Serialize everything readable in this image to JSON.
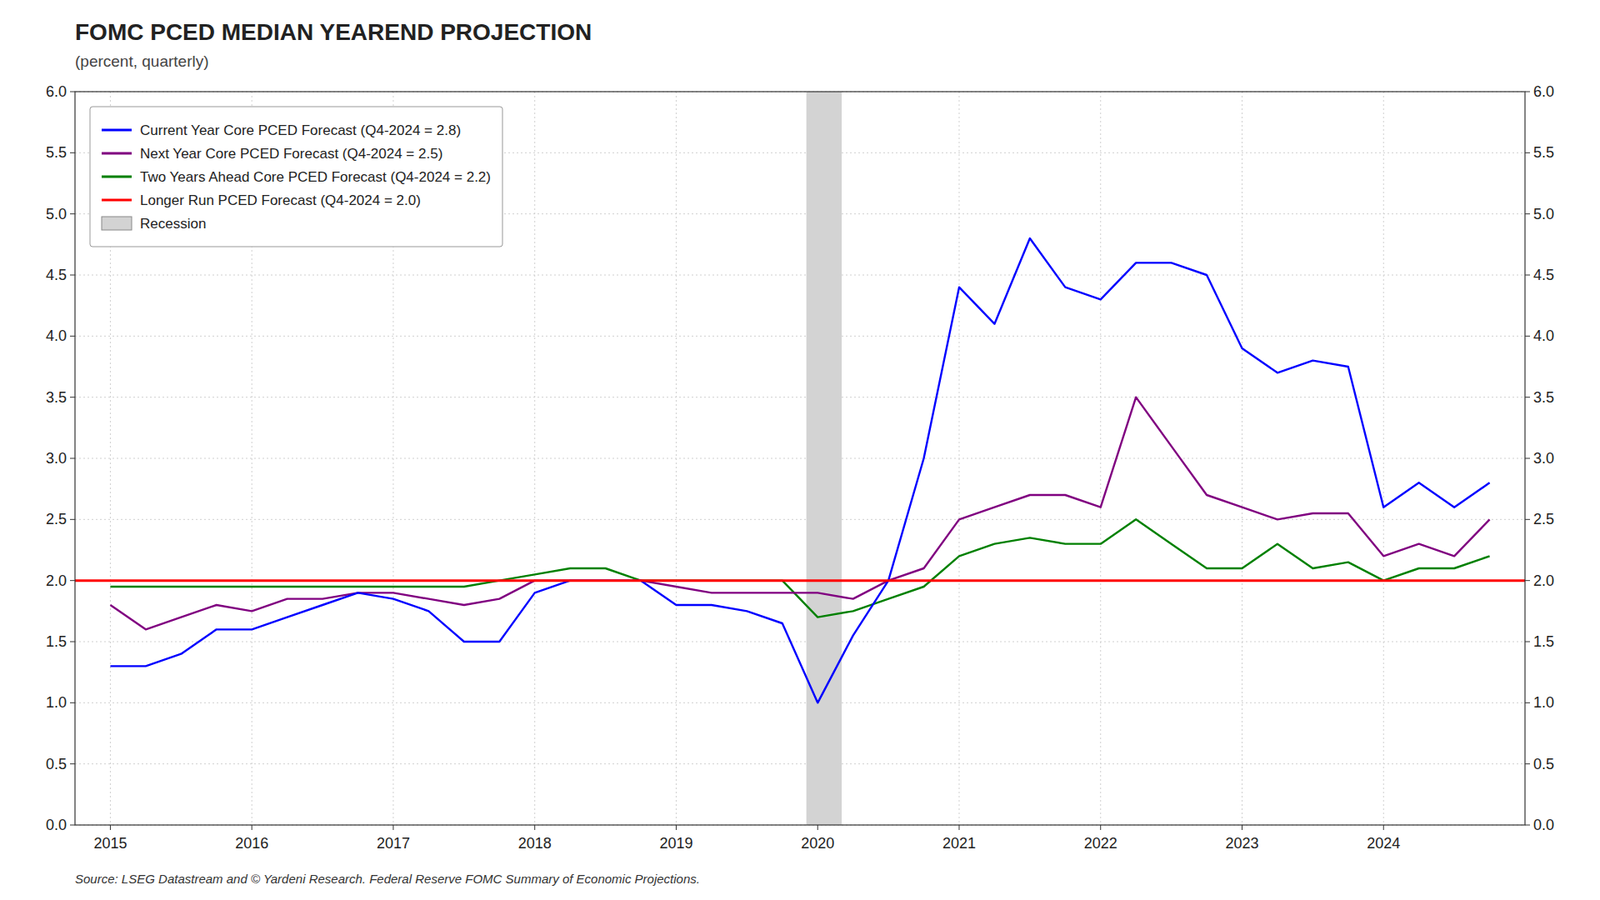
{
  "chart_data": {
    "type": "line",
    "title": "FOMC PCED MEDIAN YEAREND PROJECTION",
    "subtitle": "(percent, quarterly)",
    "annotations": [
      "Source: LSEG Datastream and © Yardeni Research. Federal Reserve FOMC Summary of Economic Projections."
    ],
    "series": [
      {
        "name": "Current Year Core PCED Forecast (Q4-2024 = 2.8)",
        "color": "blue",
        "x": [
          2015.0,
          2015.25,
          2015.5,
          2015.75,
          2016.0,
          2016.25,
          2016.5,
          2016.75,
          2017.0,
          2017.25,
          2017.5,
          2017.75,
          2018.0,
          2018.25,
          2018.5,
          2018.75,
          2019.0,
          2019.25,
          2019.5,
          2019.75,
          2020.0,
          2020.25,
          2020.5,
          2020.75,
          2021.0,
          2021.25,
          2021.5,
          2021.75,
          2022.0,
          2022.25,
          2022.5,
          2022.75,
          2023.0,
          2023.25,
          2023.5,
          2023.75,
          2024.0,
          2024.25,
          2024.5,
          2024.75
        ],
        "values": [
          1.3,
          1.3,
          1.4,
          1.6,
          1.6,
          1.7,
          1.8,
          1.9,
          1.85,
          1.75,
          1.5,
          1.5,
          1.9,
          2.0,
          2.0,
          2.0,
          1.8,
          1.8,
          1.75,
          1.65,
          1.0,
          1.55,
          2.0,
          3.0,
          4.4,
          4.1,
          4.8,
          4.4,
          4.3,
          4.6,
          4.6,
          4.5,
          3.9,
          3.7,
          3.8,
          3.75,
          2.6,
          2.8,
          2.6,
          2.8
        ]
      },
      {
        "name": "Next Year Core PCED Forecast (Q4-2024 = 2.5)",
        "color": "purple",
        "x": [
          2015.0,
          2015.25,
          2015.5,
          2015.75,
          2016.0,
          2016.25,
          2016.5,
          2016.75,
          2017.0,
          2017.25,
          2017.5,
          2017.75,
          2018.0,
          2018.25,
          2018.5,
          2018.75,
          2019.0,
          2019.25,
          2019.5,
          2019.75,
          2020.0,
          2020.25,
          2020.5,
          2020.75,
          2021.0,
          2021.25,
          2021.5,
          2021.75,
          2022.0,
          2022.25,
          2022.5,
          2022.75,
          2023.0,
          2023.25,
          2023.5,
          2023.75,
          2024.0,
          2024.25,
          2024.5,
          2024.75
        ],
        "values": [
          1.8,
          1.6,
          1.7,
          1.8,
          1.75,
          1.85,
          1.85,
          1.9,
          1.9,
          1.85,
          1.8,
          1.85,
          2.0,
          2.0,
          2.0,
          2.0,
          1.95,
          1.9,
          1.9,
          1.9,
          1.9,
          1.85,
          2.0,
          2.1,
          2.5,
          2.6,
          2.7,
          2.7,
          2.6,
          3.5,
          3.1,
          2.7,
          2.6,
          2.5,
          2.55,
          2.55,
          2.2,
          2.3,
          2.2,
          2.5
        ]
      },
      {
        "name": "Two Years Ahead Core PCED Forecast (Q4-2024 = 2.2)",
        "color": "green",
        "x": [
          2015.0,
          2015.25,
          2015.5,
          2015.75,
          2016.0,
          2016.25,
          2016.5,
          2016.75,
          2017.0,
          2017.25,
          2017.5,
          2017.75,
          2018.0,
          2018.25,
          2018.5,
          2018.75,
          2019.0,
          2019.25,
          2019.5,
          2019.75,
          2020.0,
          2020.25,
          2020.5,
          2020.75,
          2021.0,
          2021.25,
          2021.5,
          2021.75,
          2022.0,
          2022.25,
          2022.5,
          2022.75,
          2023.0,
          2023.25,
          2023.5,
          2023.75,
          2024.0,
          2024.25,
          2024.5,
          2024.75
        ],
        "values": [
          1.95,
          1.95,
          1.95,
          1.95,
          1.95,
          1.95,
          1.95,
          1.95,
          1.95,
          1.95,
          1.95,
          2.0,
          2.05,
          2.1,
          2.1,
          2.0,
          2.0,
          2.0,
          2.0,
          2.0,
          1.7,
          1.75,
          1.85,
          1.95,
          2.2,
          2.3,
          2.35,
          2.3,
          2.3,
          2.5,
          2.3,
          2.1,
          2.1,
          2.3,
          2.1,
          2.15,
          2.0,
          2.1,
          2.1,
          2.2
        ]
      },
      {
        "name": "Longer Run PCED Forecast (Q4-2024 = 2.0)",
        "color": "red",
        "x": [
          2014.75,
          2025.0
        ],
        "values": [
          2.0,
          2.0
        ]
      }
    ],
    "shaded_regions": [
      {
        "name": "Recession",
        "color": "lightgray",
        "x": [
          2019.92,
          2020.17
        ]
      }
    ],
    "xlim": [
      2014.75,
      2025.0
    ],
    "xticks": [
      2015,
      2016,
      2017,
      2018,
      2019,
      2020,
      2021,
      2022,
      2023,
      2024
    ],
    "ylim": [
      0.0,
      6.0
    ],
    "yticks": [
      {
        "value": 0,
        "label": "0.0"
      },
      0.5,
      {
        "value": 1,
        "label": "1.0"
      },
      1.5,
      {
        "value": 2,
        "label": "2.0"
      },
      2.5,
      {
        "value": 3,
        "label": "3.0"
      },
      3.5,
      {
        "value": 4,
        "label": "4.0"
      },
      4.5,
      {
        "value": 5,
        "label": "5.0"
      },
      5.5,
      {
        "value": 6,
        "label": "6.0"
      }
    ],
    "y2lim": [
      0.0,
      6.0
    ],
    "y2ticks": [
      {
        "value": 0,
        "label": "0.0"
      },
      0.5,
      {
        "value": 1,
        "label": "1.0"
      },
      1.5,
      {
        "value": 2,
        "label": "2.0"
      },
      2.5,
      {
        "value": 3,
        "label": "3.0"
      },
      3.5,
      {
        "value": 4,
        "label": "4.0"
      },
      4.5,
      {
        "value": 5,
        "label": "5.0"
      },
      5.5,
      {
        "value": 6,
        "label": "6.0"
      }
    ],
    "grid": true,
    "legend": "upper-left"
  }
}
